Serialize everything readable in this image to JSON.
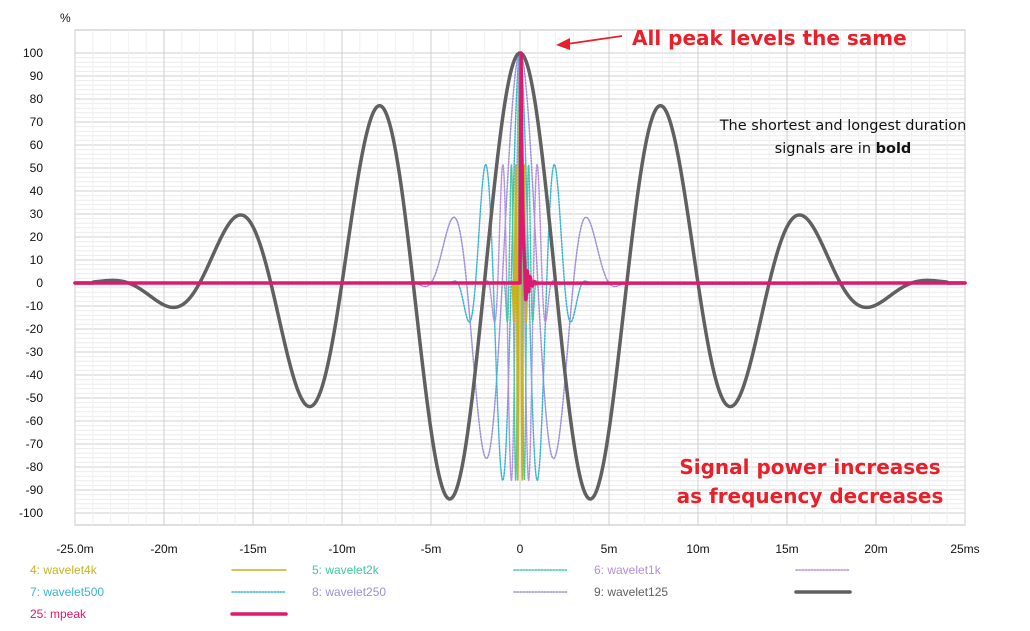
{
  "chart_data": {
    "type": "line",
    "title": "",
    "xlabel": "",
    "ylabel": "",
    "y_unit": "%",
    "x_unit_label": "25ms",
    "xlim": [
      -25,
      25
    ],
    "ylim": [
      -100,
      100
    ],
    "x_ticks": [
      {
        "value": -25,
        "label": "-25.0m"
      },
      {
        "value": -20,
        "label": "-20m"
      },
      {
        "value": -15,
        "label": "-15m"
      },
      {
        "value": -10,
        "label": "-10m"
      },
      {
        "value": -5,
        "label": "-5m"
      },
      {
        "value": 0,
        "label": "0"
      },
      {
        "value": 5,
        "label": "5m"
      },
      {
        "value": 10,
        "label": "10m"
      },
      {
        "value": 15,
        "label": "15m"
      },
      {
        "value": 20,
        "label": "20m"
      },
      {
        "value": 25,
        "label": "25ms"
      }
    ],
    "y_ticks": [
      100,
      90,
      80,
      70,
      60,
      50,
      40,
      30,
      20,
      10,
      0,
      -10,
      -20,
      -30,
      -40,
      -50,
      -60,
      -70,
      -80,
      -90,
      -100
    ],
    "grid": true,
    "legend_position": "bottom",
    "series": [
      {
        "name": "4: wavelet4k",
        "color": "#c9b21f",
        "style": "solid",
        "width": 1.5,
        "freq_khz": 4,
        "duration_ms": 1.0
      },
      {
        "name": "5: wavelet2k",
        "color": "#3fc8a6",
        "style": "dotted",
        "width": 1.5,
        "freq_khz": 2,
        "duration_ms": 2.0
      },
      {
        "name": "6: wavelet1k",
        "color": "#b58fdb",
        "style": "dotted",
        "width": 1.5,
        "freq_khz": 1,
        "duration_ms": 4.0
      },
      {
        "name": "7: wavelet500",
        "color": "#3ab5d0",
        "style": "dotted",
        "width": 1.5,
        "freq_khz": 0.5,
        "duration_ms": 8.0
      },
      {
        "name": "8: wavelet250",
        "color": "#9f8fd8",
        "style": "dotted",
        "width": 1.5,
        "freq_khz": 0.25,
        "duration_ms": 12.0
      },
      {
        "name": "9: wavelet125",
        "color": "#606060",
        "style": "solid",
        "width": 3.5,
        "freq_khz": 0.125,
        "duration_ms": 24.0
      },
      {
        "name": "25: mpeak",
        "color": "#e0186f",
        "style": "solid",
        "width": 3.5,
        "freq_khz": 8,
        "duration_ms": 0.6
      }
    ],
    "peak_value": 100,
    "annotations": [
      {
        "text": "All peak levels the same",
        "color": "#e8202a"
      },
      {
        "text_lines": [
          "The shortest and longest duration",
          "signals are in "
        ],
        "bold_word": "bold",
        "color": "#111111"
      },
      {
        "text_lines": [
          "Signal power increases",
          "as frequency decreases"
        ],
        "color": "#e8202a"
      }
    ]
  }
}
